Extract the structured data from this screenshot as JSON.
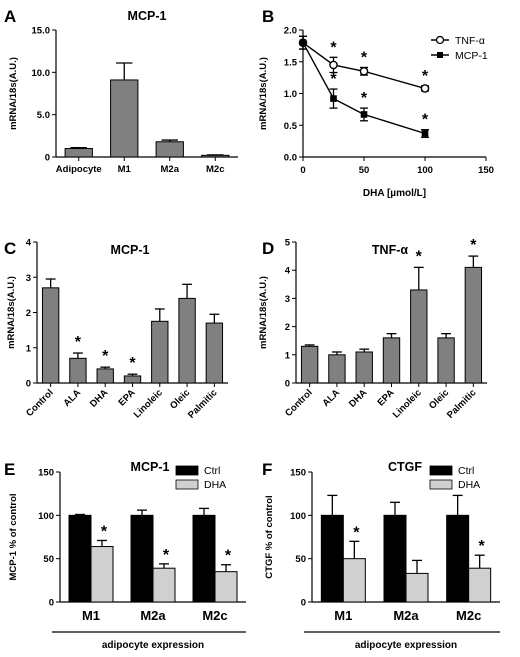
{
  "chart_data": [
    {
      "id": "A",
      "panel": "A",
      "type": "bar",
      "title": "MCP-1",
      "xlabel": "",
      "ylabel": "mRNA/18s(A.U.)",
      "ylim": [
        0,
        15
      ],
      "yticks": [
        0,
        5,
        10,
        15
      ],
      "ytick_labels": [
        "0",
        "5.0",
        "10.0",
        "15.0"
      ],
      "categories": [
        "Adipocyte",
        "M1",
        "M2a",
        "M2c"
      ],
      "values": [
        1.0,
        9.1,
        1.8,
        0.2
      ],
      "errors": [
        0.1,
        2.0,
        0.2,
        0.05
      ],
      "colors": {
        "bar": "#808080"
      }
    },
    {
      "id": "B",
      "panel": "B",
      "type": "line",
      "title": "",
      "xlabel": "DHA [µmol/L]",
      "ylabel": "mRNA/18s(A.U.)",
      "xlim": [
        0,
        150
      ],
      "ylim": [
        0,
        2.0
      ],
      "xticks": [
        0,
        50,
        100,
        150
      ],
      "yticks": [
        0,
        0.5,
        1.0,
        1.5,
        2.0
      ],
      "ytick_labels": [
        "0.0",
        "0.5",
        "1.0",
        "1.5",
        "2.0"
      ],
      "legend_position": "top-right",
      "series": [
        {
          "name": "TNF-α",
          "marker": "open-circle",
          "x": [
            0,
            25,
            50,
            100
          ],
          "values": [
            1.8,
            1.45,
            1.35,
            1.08
          ],
          "errors": [
            0.1,
            0.12,
            0.06,
            0.04
          ],
          "star": [
            false,
            true,
            true,
            true
          ]
        },
        {
          "name": "MCP-1",
          "marker": "filled-square",
          "x": [
            0,
            25,
            50,
            100
          ],
          "values": [
            1.8,
            0.92,
            0.67,
            0.37
          ],
          "errors": [
            0.1,
            0.15,
            0.1,
            0.06
          ],
          "star": [
            false,
            true,
            true,
            true
          ]
        }
      ]
    },
    {
      "id": "C",
      "panel": "C",
      "type": "bar",
      "title": "MCP-1",
      "xlabel": "",
      "ylabel": "mRNA/18s(A.U.)",
      "ylim": [
        0,
        4
      ],
      "yticks": [
        0,
        1,
        2,
        3,
        4
      ],
      "ytick_labels": [
        "0",
        "1",
        "2",
        "3",
        "4"
      ],
      "categories": [
        "Control",
        "ALA",
        "DHA",
        "EPA",
        "Linoleic",
        "Oleic",
        "Palmitic"
      ],
      "values": [
        2.7,
        0.7,
        0.4,
        0.2,
        1.75,
        2.4,
        1.7
      ],
      "errors": [
        0.25,
        0.15,
        0.05,
        0.05,
        0.35,
        0.4,
        0.25
      ],
      "star": [
        false,
        true,
        true,
        true,
        false,
        false,
        false
      ],
      "colors": {
        "bar": "#808080"
      }
    },
    {
      "id": "D",
      "panel": "D",
      "type": "bar",
      "title": "TNF-α",
      "xlabel": "",
      "ylabel": "mRNA/18s(A.U.)",
      "ylim": [
        0,
        5
      ],
      "yticks": [
        0,
        1,
        2,
        3,
        4,
        5
      ],
      "ytick_labels": [
        "0",
        "1",
        "2",
        "3",
        "4",
        "5"
      ],
      "categories": [
        "Control",
        "ALA",
        "DHA",
        "EPA",
        "Linoleic",
        "Oleic",
        "Palmitic"
      ],
      "values": [
        1.3,
        1.0,
        1.1,
        1.6,
        3.3,
        1.6,
        4.1
      ],
      "errors": [
        0.05,
        0.1,
        0.1,
        0.15,
        0.8,
        0.15,
        0.4
      ],
      "star": [
        false,
        false,
        false,
        false,
        true,
        false,
        true
      ],
      "colors": {
        "bar": "#808080"
      }
    },
    {
      "id": "E",
      "panel": "E",
      "type": "bar",
      "title": "MCP-1",
      "xlabel": "adipocyte expression",
      "ylabel": "MCP-1 % of control",
      "ylim": [
        0,
        150
      ],
      "yticks": [
        0,
        50,
        100,
        150
      ],
      "categories": [
        "M1",
        "M2a",
        "M2c"
      ],
      "legend_position": "top-right",
      "series": [
        {
          "name": "Ctrl",
          "values": [
            100,
            100,
            100
          ],
          "errors": [
            1,
            6,
            8
          ]
        },
        {
          "name": "DHA",
          "values": [
            64,
            39,
            35
          ],
          "errors": [
            7,
            5,
            8
          ],
          "star": [
            true,
            true,
            true
          ]
        }
      ],
      "colors": {
        "Ctrl": "#000000",
        "DHA": "#d0d0d0"
      }
    },
    {
      "id": "F",
      "panel": "F",
      "type": "bar",
      "title": "CTGF",
      "xlabel": "adipocyte expression",
      "ylabel": "CTGF % of control",
      "ylim": [
        0,
        150
      ],
      "yticks": [
        0,
        50,
        100,
        150
      ],
      "categories": [
        "M1",
        "M2a",
        "M2c"
      ],
      "legend_position": "top-right",
      "series": [
        {
          "name": "Ctrl",
          "values": [
            100,
            100,
            100
          ],
          "errors": [
            23,
            15,
            23
          ]
        },
        {
          "name": "DHA",
          "values": [
            50,
            33,
            39
          ],
          "errors": [
            20,
            15,
            15
          ],
          "star": [
            true,
            false,
            true
          ]
        }
      ],
      "colors": {
        "Ctrl": "#000000",
        "DHA": "#d0d0d0"
      }
    }
  ],
  "star_symbol": "*"
}
